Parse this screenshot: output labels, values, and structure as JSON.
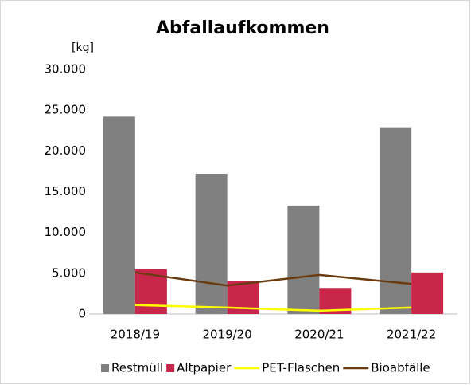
{
  "chart_data": {
    "type": "bar",
    "title": "Abfallaufkommen",
    "y_label": "[kg]",
    "categories": [
      "2018/19",
      "2019/20",
      "2020/21",
      "2021/22"
    ],
    "series": [
      {
        "name": "Restmüll",
        "color": "#808080",
        "type": "bar",
        "values": [
          24200,
          17200,
          13300,
          22900
        ]
      },
      {
        "name": "Altpapier",
        "color": "#c8264a",
        "type": "bar",
        "values": [
          5500,
          4100,
          3200,
          5100
        ]
      },
      {
        "name": "PET-Flaschen",
        "color": "#ffff00",
        "type": "line",
        "values": [
          1100,
          800,
          400,
          800
        ]
      },
      {
        "name": "Bioabfälle",
        "color": "#6b3a10",
        "type": "line",
        "values": [
          5100,
          3500,
          4800,
          3700
        ]
      }
    ],
    "ylim": [
      0,
      30000
    ],
    "yticks": [
      0,
      {
        "value": 5000,
        "label": "5.000"
      },
      {
        "value": 10000,
        "label": "10.000"
      },
      {
        "value": 15000,
        "label": "15.000"
      },
      {
        "value": 20000,
        "label": "20.000"
      },
      {
        "value": 25000,
        "label": "25.000"
      },
      {
        "value": 30000,
        "label": "30.000"
      }
    ],
    "grid": false,
    "legend": "bottom"
  }
}
